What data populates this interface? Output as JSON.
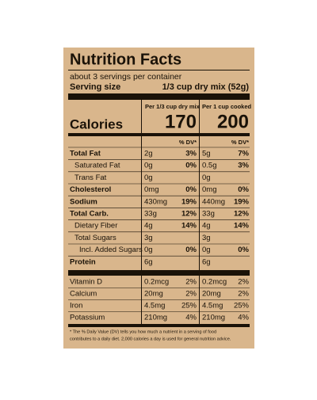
{
  "header": {
    "title": "Nutrition Facts",
    "servings": "about 3 servings per container",
    "serving_size_label": "Serving size",
    "serving_size": "1/3 cup dry mix (52g)"
  },
  "columns": [
    "Per 1/3 cup dry mix",
    "Per 1 cup cooked"
  ],
  "calories": {
    "label": "Calories",
    "values": [
      "170",
      "200"
    ]
  },
  "dv_header": [
    "% DV*",
    "% DV*"
  ],
  "rows": [
    {
      "name": "Total Fat",
      "bold": true,
      "indent": 0,
      "amounts": [
        "2g",
        "5g"
      ],
      "dv": [
        "3%",
        "7%"
      ]
    },
    {
      "name": "Saturated Fat",
      "bold": false,
      "indent": 1,
      "amounts": [
        "0g",
        "0.5g"
      ],
      "dv": [
        "0%",
        "3%"
      ]
    },
    {
      "name": "Trans Fat",
      "bold": false,
      "indent": 1,
      "amounts": [
        "0g",
        "0g"
      ],
      "dv": [
        null,
        null
      ]
    },
    {
      "name": "Cholesterol",
      "bold": true,
      "indent": 0,
      "amounts": [
        "0mg",
        "0mg"
      ],
      "dv": [
        "0%",
        "0%"
      ]
    },
    {
      "name": "Sodium",
      "bold": true,
      "indent": 0,
      "amounts": [
        "430mg",
        "440mg"
      ],
      "dv": [
        "19%",
        "19%"
      ]
    },
    {
      "name": "Total Carb.",
      "bold": true,
      "indent": 0,
      "amounts": [
        "33g",
        "33g"
      ],
      "dv": [
        "12%",
        "12%"
      ]
    },
    {
      "name": "Dietary Fiber",
      "bold": false,
      "indent": 1,
      "amounts": [
        "4g",
        "4g"
      ],
      "dv": [
        "14%",
        "14%"
      ]
    },
    {
      "name": "Total Sugars",
      "bold": false,
      "indent": 1,
      "amounts": [
        "3g",
        "3g"
      ],
      "dv": [
        null,
        null
      ]
    },
    {
      "name": "Incl. Added Sugars",
      "bold": false,
      "indent": 2,
      "amounts": [
        "0g",
        "0g"
      ],
      "dv": [
        "0%",
        "0%"
      ]
    },
    {
      "name": "Protein",
      "bold": true,
      "indent": 0,
      "amounts": [
        "6g",
        "6g"
      ],
      "dv": [
        null,
        null
      ]
    }
  ],
  "vitamins": [
    {
      "name": "Vitamin D",
      "amounts": [
        "0.2mcg",
        "0.2mcg"
      ],
      "dv": [
        "2%",
        "2%"
      ]
    },
    {
      "name": "Calcium",
      "amounts": [
        "20mg",
        "20mg"
      ],
      "dv": [
        "2%",
        "2%"
      ]
    },
    {
      "name": "Iron",
      "amounts": [
        "4.5mg",
        "4.5mg"
      ],
      "dv": [
        "25%",
        "25%"
      ]
    },
    {
      "name": "Potassium",
      "amounts": [
        "210mg",
        "210mg"
      ],
      "dv": [
        "4%",
        "4%"
      ]
    }
  ],
  "footnote": [
    "* The % Daily Value (DV) tells you how much a nutrient in a serving of food",
    "contributes to a daily diet. 2,000 calories a day is used for general nutrition advice."
  ]
}
